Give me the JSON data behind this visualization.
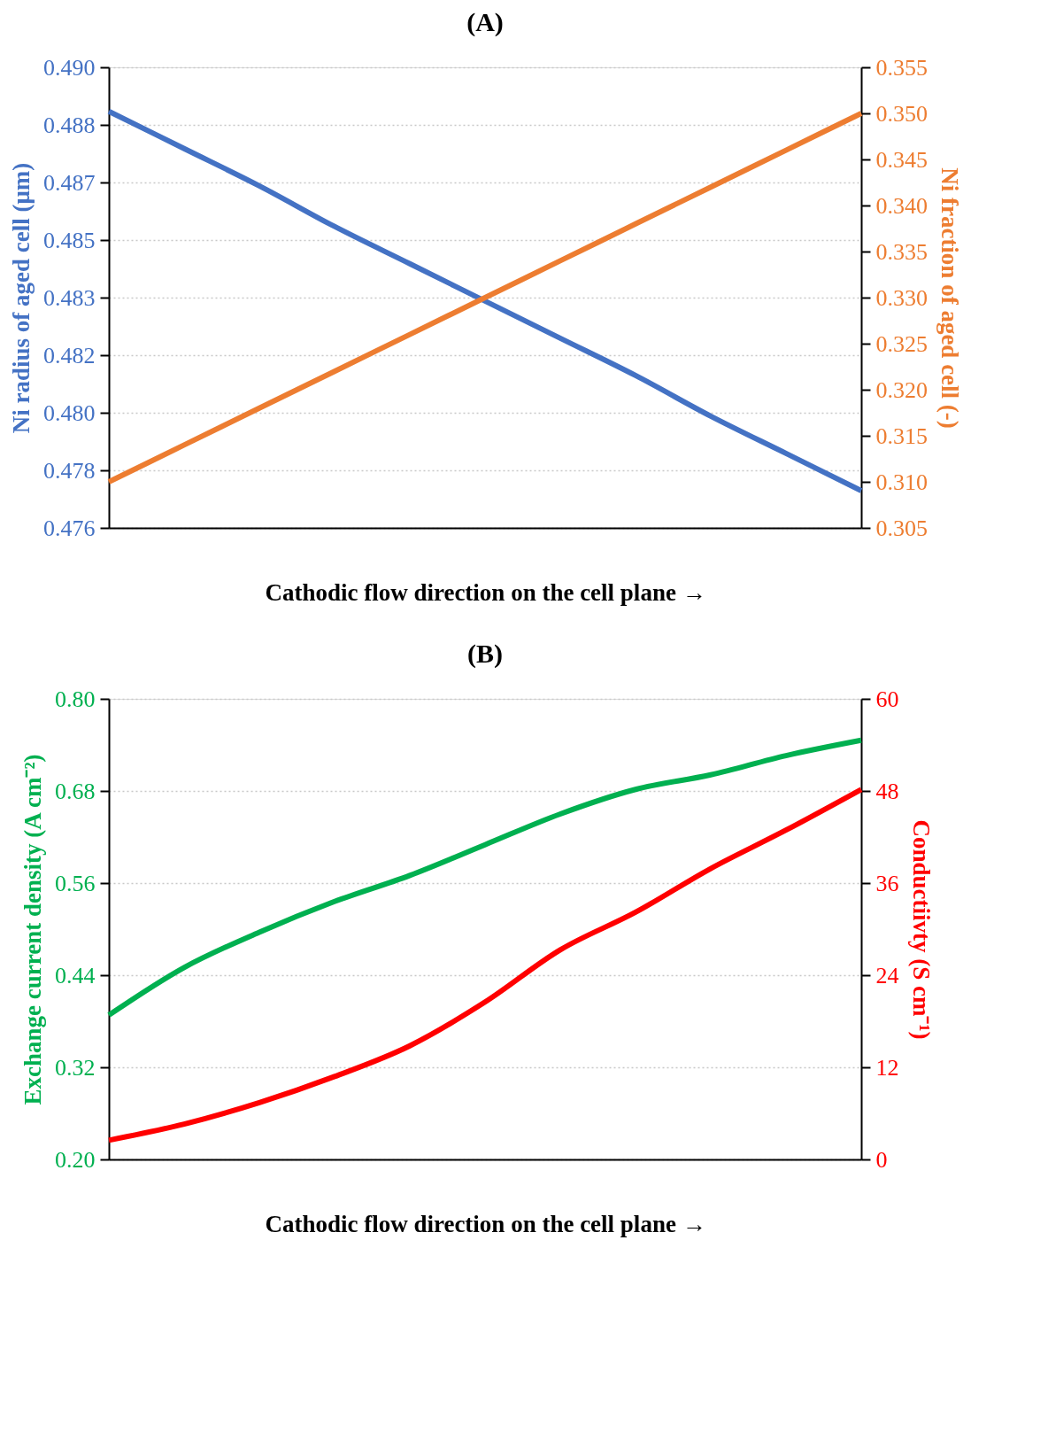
{
  "chart_data": [
    {
      "type": "line",
      "title": "(A)",
      "xlabel": "Cathodic flow direction on the cell plane →",
      "ylabel": "Ni radius of aged cell (μm)",
      "y2label": "Ni fraction of aged cell (-)",
      "categories": [
        null,
        null,
        null,
        null,
        null,
        null,
        null,
        null,
        null,
        null,
        null
      ],
      "series": [
        {
          "color": "#4472c4",
          "values": [
            0.4887,
            0.4876,
            0.4865,
            0.4853,
            0.4842,
            0.4831,
            0.482,
            0.4809,
            0.4797,
            0.4786,
            0.4775
          ]
        },
        {
          "color": "#ed7d31",
          "axis": "y2",
          "values": [
            0.31,
            0.314,
            0.318,
            0.322,
            0.326,
            0.33,
            0.334,
            0.338,
            0.342,
            0.346,
            0.35
          ]
        }
      ],
      "ylim": [
        0.4764,
        0.49
      ],
      "yticks": [
        {
          "value": 0.4764,
          "label": "0.476"
        },
        {
          "value": 0.4781,
          "label": "0.478"
        },
        {
          "value": 0.4798,
          "label": "0.480"
        },
        {
          "value": 0.4815,
          "label": "0.482"
        },
        {
          "value": 0.4832,
          "label": "0.483"
        },
        {
          "value": 0.4849,
          "label": "0.485"
        },
        {
          "value": 0.4866,
          "label": "0.487"
        },
        {
          "value": 0.4883,
          "label": "0.488"
        },
        {
          "value": 0.49,
          "label": "0.490"
        }
      ],
      "y2lim": [
        0.305,
        0.355
      ],
      "y2ticks": [
        0.305,
        {
          "value": 0.31,
          "label": "0.310"
        },
        0.315,
        {
          "value": 0.32,
          "label": "0.320"
        },
        0.325,
        {
          "value": 0.33,
          "label": "0.330"
        },
        0.335,
        {
          "value": 0.34,
          "label": "0.340"
        },
        0.345,
        {
          "value": 0.35,
          "label": "0.350"
        },
        0.355
      ],
      "grid": "y"
    },
    {
      "type": "line",
      "title": "(B)",
      "xlabel": "Cathodic flow direction on the cell plane →",
      "ylabel": "Exchange current density (A cm⁻²)",
      "y2label": "Conductiivty (S cm⁻¹)",
      "categories": [
        null,
        null,
        null,
        null,
        null,
        null,
        null,
        null,
        null,
        null,
        null
      ],
      "series": [
        {
          "color": "#00b050",
          "values": [
            0.388,
            0.45,
            0.496,
            0.536,
            0.57,
            0.61,
            0.65,
            0.682,
            0.701,
            0.726,
            0.746
          ]
        },
        {
          "color": "#ff0000",
          "axis": "y2",
          "values": [
            2.5,
            4.6,
            7.4,
            10.8,
            14.8,
            20.5,
            27.3,
            32.2,
            37.9,
            42.9,
            48.2
          ]
        }
      ],
      "ylim": [
        0.2,
        0.8
      ],
      "yticks": [
        {
          "value": 0.2,
          "label": "0.20"
        },
        0.32,
        0.44,
        0.56,
        0.68,
        {
          "value": 0.8,
          "label": "0.80"
        }
      ],
      "y2lim": [
        0,
        60
      ],
      "y2ticks": [
        0,
        12,
        24,
        36,
        48,
        60
      ],
      "grid": "y"
    }
  ]
}
